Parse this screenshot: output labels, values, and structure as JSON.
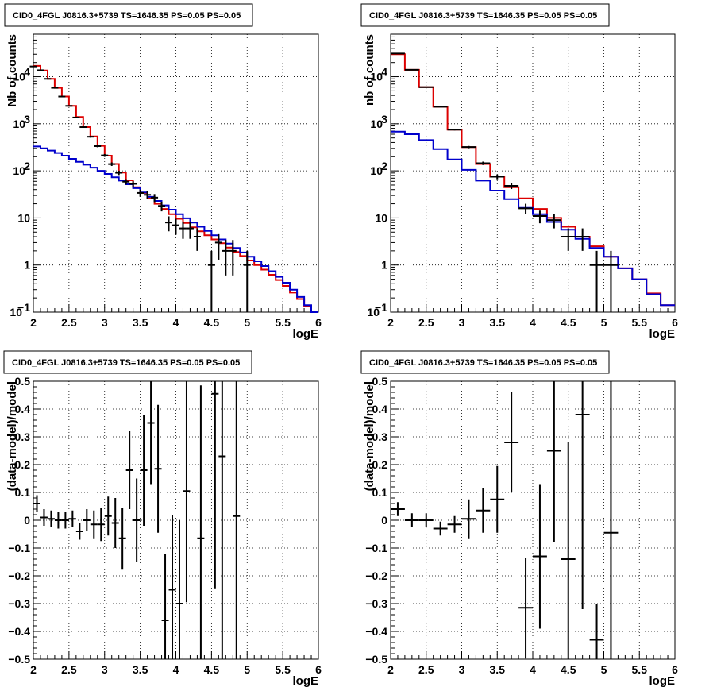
{
  "chart_data": [
    {
      "type": "line",
      "title": "CID0_4FGL J0816.3+5739 TS=1646.35 PS=0.05 PS=0.05",
      "xlabel": "logE",
      "ylabel": "Nb of counts",
      "xlim": [
        2,
        6
      ],
      "ylim": [
        0.1,
        80000
      ],
      "yscale": "log",
      "grid": true,
      "x_ticks": [
        "2",
        "2.5",
        "3",
        "3.5",
        "4",
        "4.5",
        "5",
        "5.5",
        "6"
      ],
      "y_ticks": [
        {
          "v": 0.1,
          "label": "10",
          "sup": "−1"
        },
        {
          "v": 1,
          "label": "1",
          "sup": ""
        },
        {
          "v": 10,
          "label": "10",
          "sup": ""
        },
        {
          "v": 100,
          "label": "10",
          "sup": "2"
        },
        {
          "v": 1000,
          "label": "10",
          "sup": "3"
        },
        {
          "v": 10000,
          "label": "10",
          "sup": "4"
        }
      ],
      "bin_edges": [
        2.0,
        2.1,
        2.2,
        2.3,
        2.4,
        2.5,
        2.6,
        2.7,
        2.8,
        2.9,
        3.0,
        3.1,
        3.2,
        3.3,
        3.4,
        3.5,
        3.6,
        3.7,
        3.8,
        3.9,
        4.0,
        4.1,
        4.2,
        4.3,
        4.4,
        4.5,
        4.6,
        4.7,
        4.8,
        4.9,
        5.0,
        5.1,
        5.2,
        5.3,
        5.4,
        5.5,
        5.6,
        5.7,
        5.8,
        5.9,
        6.0
      ],
      "series": [
        {
          "color": "#dd0000",
          "values": [
            17000,
            13500,
            9000,
            5800,
            3800,
            2400,
            1400,
            850,
            540,
            340,
            210,
            140,
            92,
            63,
            45,
            34,
            26,
            20,
            15.5,
            12,
            9.6,
            7.8,
            6.3,
            5.2,
            4.3,
            3.5,
            2.9,
            2.35,
            1.9,
            1.55,
            1.25,
            1.0,
            0.8,
            0.62,
            0.48,
            0.36,
            0.26,
            0.19,
            0.135,
            0.1
          ]
        },
        {
          "color": "#0000cc",
          "values": [
            330,
            300,
            270,
            240,
            210,
            180,
            155,
            135,
            117,
            100,
            86,
            73,
            62,
            52,
            43,
            35,
            28,
            23,
            18.5,
            15,
            12,
            9.8,
            8,
            6.5,
            5.3,
            4.3,
            3.5,
            2.85,
            2.3,
            1.85,
            1.5,
            1.2,
            0.95,
            0.74,
            0.56,
            0.42,
            0.3,
            0.21,
            0.14,
            0.1
          ]
        }
      ],
      "points": [
        {
          "x": 2.0,
          "y": 16500,
          "e": 130,
          "w": 0.05
        },
        {
          "x": 2.1,
          "y": 13700,
          "e": 117,
          "w": 0.05
        },
        {
          "x": 2.2,
          "y": 9000,
          "e": 95,
          "w": 0.05
        },
        {
          "x": 2.3,
          "y": 5800,
          "e": 76,
          "w": 0.05
        },
        {
          "x": 2.4,
          "y": 3790,
          "e": 62,
          "w": 0.05
        },
        {
          "x": 2.5,
          "y": 2400,
          "e": 49,
          "w": 0.05
        },
        {
          "x": 2.6,
          "y": 1360,
          "e": 37,
          "w": 0.05
        },
        {
          "x": 2.7,
          "y": 850,
          "e": 29,
          "w": 0.05
        },
        {
          "x": 2.8,
          "y": 530,
          "e": 23,
          "w": 0.05
        },
        {
          "x": 2.9,
          "y": 335,
          "e": 18,
          "w": 0.05
        },
        {
          "x": 3.0,
          "y": 213,
          "e": 15,
          "w": 0.05
        },
        {
          "x": 3.1,
          "y": 139,
          "e": 12,
          "w": 0.05
        },
        {
          "x": 3.2,
          "y": 91,
          "e": 9.5,
          "w": 0.05
        },
        {
          "x": 3.3,
          "y": 59,
          "e": 7.7,
          "w": 0.05
        },
        {
          "x": 3.4,
          "y": 53,
          "e": 7.3,
          "w": 0.05
        },
        {
          "x": 3.5,
          "y": 34,
          "e": 5.8,
          "w": 0.05
        },
        {
          "x": 3.6,
          "y": 31,
          "e": 5.6,
          "w": 0.05
        },
        {
          "x": 3.7,
          "y": 27,
          "e": 5.2,
          "w": 0.05
        },
        {
          "x": 3.8,
          "y": 18,
          "e": 4.2,
          "w": 0.05
        },
        {
          "x": 3.9,
          "y": 8,
          "e": 2.8,
          "w": 0.05
        },
        {
          "x": 4.0,
          "y": 7,
          "e": 2.6,
          "w": 0.05
        },
        {
          "x": 4.1,
          "y": 6,
          "e": 2.4,
          "w": 0.05
        },
        {
          "x": 4.2,
          "y": 6,
          "e": 2.4,
          "w": 0.05
        },
        {
          "x": 4.3,
          "y": 4,
          "e": 2.0,
          "w": 0.05
        },
        {
          "x": 4.5,
          "y": 1,
          "e": 1.0,
          "w": 0.05
        },
        {
          "x": 4.6,
          "y": 3,
          "e": 1.7,
          "w": 0.05
        },
        {
          "x": 4.7,
          "y": 2,
          "e": 1.4,
          "w": 0.05
        },
        {
          "x": 4.8,
          "y": 2,
          "e": 1.4,
          "w": 0.05
        },
        {
          "x": 5.0,
          "y": 1,
          "e": 1.0,
          "w": 0.05
        }
      ]
    },
    {
      "type": "line",
      "title": "CID0_4FGL J0816.3+5739 TS=1646.35 PS=0.05 PS=0.05",
      "xlabel": "logE",
      "ylabel": "nb of counts",
      "xlim": [
        2,
        6
      ],
      "ylim": [
        0.1,
        80000
      ],
      "yscale": "log",
      "grid": true,
      "x_ticks": [
        "2",
        "2.5",
        "3",
        "3.5",
        "4",
        "4.5",
        "5",
        "5.5",
        "6"
      ],
      "y_ticks": [
        {
          "v": 0.1,
          "label": "10",
          "sup": "−1"
        },
        {
          "v": 1,
          "label": "1",
          "sup": ""
        },
        {
          "v": 10,
          "label": "10",
          "sup": ""
        },
        {
          "v": 100,
          "label": "10",
          "sup": "2"
        },
        {
          "v": 1000,
          "label": "10",
          "sup": "3"
        },
        {
          "v": 10000,
          "label": "10",
          "sup": "4"
        }
      ],
      "bin_edges": [
        2.0,
        2.2,
        2.4,
        2.6,
        2.8,
        3.0,
        3.2,
        3.4,
        3.6,
        3.8,
        4.0,
        4.2,
        4.4,
        4.6,
        4.8,
        5.0,
        5.2,
        5.4,
        5.6,
        5.8,
        6.0
      ],
      "series": [
        {
          "color": "#dd0000",
          "values": [
            30000,
            14000,
            6000,
            2300,
            750,
            320,
            140,
            75,
            45,
            26,
            15.5,
            10,
            6.5,
            4.0,
            2.5,
            1.5,
            0.85,
            0.5,
            0.25,
            0.14
          ]
        },
        {
          "color": "#0000cc",
          "values": [
            680,
            600,
            450,
            290,
            175,
            105,
            62,
            38,
            25,
            17,
            12,
            8.2,
            5.6,
            3.6,
            2.3,
            1.5,
            0.85,
            0.5,
            0.24,
            0.14
          ]
        }
      ],
      "points": [
        {
          "x": 2.1,
          "y": 31000,
          "e": 176,
          "w": 0.1
        },
        {
          "x": 2.3,
          "y": 14000,
          "e": 118,
          "w": 0.1
        },
        {
          "x": 2.5,
          "y": 6000,
          "e": 77,
          "w": 0.1
        },
        {
          "x": 2.7,
          "y": 2300,
          "e": 48,
          "w": 0.1
        },
        {
          "x": 2.9,
          "y": 750,
          "e": 27,
          "w": 0.1
        },
        {
          "x": 3.1,
          "y": 320,
          "e": 18,
          "w": 0.1
        },
        {
          "x": 3.3,
          "y": 145,
          "e": 12,
          "w": 0.1
        },
        {
          "x": 3.5,
          "y": 75,
          "e": 8.7,
          "w": 0.1
        },
        {
          "x": 3.7,
          "y": 48,
          "e": 6.9,
          "w": 0.1
        },
        {
          "x": 3.9,
          "y": 16,
          "e": 4.0,
          "w": 0.1
        },
        {
          "x": 4.1,
          "y": 11,
          "e": 3.3,
          "w": 0.1
        },
        {
          "x": 4.3,
          "y": 9,
          "e": 3.0,
          "w": 0.1
        },
        {
          "x": 4.5,
          "y": 4,
          "e": 2.0,
          "w": 0.1
        },
        {
          "x": 4.7,
          "y": 4,
          "e": 2.0,
          "w": 0.1
        },
        {
          "x": 4.9,
          "y": 1,
          "e": 1.0,
          "w": 0.1
        },
        {
          "x": 5.1,
          "y": 1,
          "e": 1.0,
          "w": 0.1
        }
      ]
    },
    {
      "type": "scatter",
      "title": "CID0_4FGL J0816.3+5739 TS=1646.35 PS=0.05 PS=0.05",
      "xlabel": "logE",
      "ylabel": "(data-model)/model",
      "xlim": [
        2,
        6
      ],
      "ylim": [
        -0.5,
        0.5
      ],
      "yscale": "linear",
      "grid": true,
      "x_ticks": [
        "2",
        "2.5",
        "3",
        "3.5",
        "4",
        "4.5",
        "5",
        "5.5",
        "6"
      ],
      "y_ticks": [
        {
          "v": -0.5,
          "label": "−0.5"
        },
        {
          "v": -0.4,
          "label": "−0.4"
        },
        {
          "v": -0.3,
          "label": "−0.3"
        },
        {
          "v": -0.2,
          "label": "−0.2"
        },
        {
          "v": -0.1,
          "label": "−0.1"
        },
        {
          "v": 0,
          "label": "0"
        },
        {
          "v": 0.1,
          "label": "0.1"
        },
        {
          "v": 0.2,
          "label": "0.2"
        },
        {
          "v": 0.3,
          "label": "0.3"
        },
        {
          "v": 0.4,
          "label": "0.4"
        },
        {
          "v": 0.5,
          "label": "0.5"
        }
      ],
      "points": [
        {
          "x": 2.05,
          "y": 0.06,
          "e": 0.03,
          "w": 0.05
        },
        {
          "x": 2.15,
          "y": 0.01,
          "e": 0.03,
          "w": 0.05
        },
        {
          "x": 2.25,
          "y": 0.005,
          "e": 0.03,
          "w": 0.05
        },
        {
          "x": 2.35,
          "y": 0.0,
          "e": 0.03,
          "w": 0.05
        },
        {
          "x": 2.45,
          "y": 0.0,
          "e": 0.03,
          "w": 0.05
        },
        {
          "x": 2.55,
          "y": 0.005,
          "e": 0.03,
          "w": 0.05
        },
        {
          "x": 2.65,
          "y": -0.04,
          "e": 0.03,
          "w": 0.05
        },
        {
          "x": 2.75,
          "y": 0.0,
          "e": 0.04,
          "w": 0.05
        },
        {
          "x": 2.85,
          "y": -0.015,
          "e": 0.05,
          "w": 0.05
        },
        {
          "x": 2.95,
          "y": -0.015,
          "e": 0.06,
          "w": 0.05
        },
        {
          "x": 3.05,
          "y": 0.015,
          "e": 0.07,
          "w": 0.05
        },
        {
          "x": 3.15,
          "y": -0.01,
          "e": 0.09,
          "w": 0.05
        },
        {
          "x": 3.25,
          "y": -0.065,
          "e": 0.11,
          "w": 0.05
        },
        {
          "x": 3.35,
          "y": 0.18,
          "e": 0.14,
          "w": 0.05
        },
        {
          "x": 3.45,
          "y": 0.0,
          "e": 0.15,
          "w": 0.05
        },
        {
          "x": 3.55,
          "y": 0.18,
          "e": 0.2,
          "w": 0.05
        },
        {
          "x": 3.65,
          "y": 0.35,
          "e": 0.22,
          "w": 0.05
        },
        {
          "x": 3.75,
          "y": 0.185,
          "e": 0.23,
          "w": 0.05
        },
        {
          "x": 3.85,
          "y": -0.36,
          "e": 0.24,
          "w": 0.05
        },
        {
          "x": 3.95,
          "y": -0.25,
          "e": 0.27,
          "w": 0.05
        },
        {
          "x": 4.05,
          "y": -0.3,
          "e": 0.3,
          "w": 0.05
        },
        {
          "x": 4.15,
          "y": 0.105,
          "e": 0.4,
          "w": 0.05
        },
        {
          "x": 4.35,
          "y": -0.065,
          "e": 0.55,
          "w": 0.05
        },
        {
          "x": 4.55,
          "y": 0.455,
          "e": 0.7,
          "w": 0.05
        },
        {
          "x": 4.65,
          "y": 0.23,
          "e": 0.75,
          "w": 0.05
        },
        {
          "x": 4.85,
          "y": 0.015,
          "e": 0.9,
          "w": 0.05
        }
      ]
    },
    {
      "type": "scatter",
      "title": "CID0_4FGL J0816.3+5739 TS=1646.35 PS=0.05 PS=0.05",
      "xlabel": "logE",
      "ylabel": "(data-model)/model",
      "xlim": [
        2,
        6
      ],
      "ylim": [
        -0.5,
        0.5
      ],
      "yscale": "linear",
      "grid": true,
      "x_ticks": [
        "2",
        "2.5",
        "3",
        "3.5",
        "4",
        "4.5",
        "5",
        "5.5",
        "6"
      ],
      "y_ticks": [
        {
          "v": -0.5,
          "label": "−0.5"
        },
        {
          "v": -0.4,
          "label": "−0.4"
        },
        {
          "v": -0.3,
          "label": "−0.3"
        },
        {
          "v": -0.2,
          "label": "−0.2"
        },
        {
          "v": -0.1,
          "label": "−0.1"
        },
        {
          "v": 0,
          "label": "0"
        },
        {
          "v": 0.1,
          "label": "0.1"
        },
        {
          "v": 0.2,
          "label": "0.2"
        },
        {
          "v": 0.3,
          "label": "0.3"
        },
        {
          "v": 0.4,
          "label": "0.4"
        },
        {
          "v": 0.5,
          "label": "0.5"
        }
      ],
      "points": [
        {
          "x": 2.1,
          "y": 0.04,
          "e": 0.025,
          "w": 0.1
        },
        {
          "x": 2.3,
          "y": 0.0,
          "e": 0.025,
          "w": 0.1
        },
        {
          "x": 2.5,
          "y": 0.0,
          "e": 0.025,
          "w": 0.1
        },
        {
          "x": 2.7,
          "y": -0.03,
          "e": 0.025,
          "w": 0.1
        },
        {
          "x": 2.9,
          "y": -0.015,
          "e": 0.03,
          "w": 0.1
        },
        {
          "x": 3.1,
          "y": 0.005,
          "e": 0.07,
          "w": 0.1
        },
        {
          "x": 3.3,
          "y": 0.035,
          "e": 0.08,
          "w": 0.1
        },
        {
          "x": 3.5,
          "y": 0.075,
          "e": 0.12,
          "w": 0.1
        },
        {
          "x": 3.7,
          "y": 0.28,
          "e": 0.18,
          "w": 0.1
        },
        {
          "x": 3.9,
          "y": -0.315,
          "e": 0.18,
          "w": 0.1
        },
        {
          "x": 4.1,
          "y": -0.13,
          "e": 0.26,
          "w": 0.1
        },
        {
          "x": 4.3,
          "y": 0.25,
          "e": 0.33,
          "w": 0.1
        },
        {
          "x": 4.5,
          "y": -0.14,
          "e": 0.42,
          "w": 0.1
        },
        {
          "x": 4.7,
          "y": 0.38,
          "e": 0.7,
          "w": 0.1
        },
        {
          "x": 4.9,
          "y": -0.43,
          "e": 0.13,
          "w": 0.1
        },
        {
          "x": 5.1,
          "y": -0.045,
          "e": 1.0,
          "w": 0.1
        }
      ]
    }
  ]
}
